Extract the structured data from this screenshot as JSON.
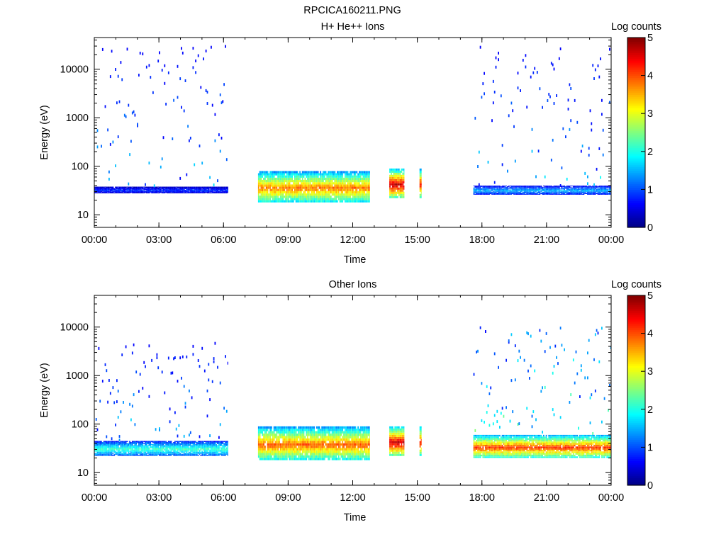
{
  "figure": {
    "title": "RPCICA160211.PNG"
  },
  "chart_data": [
    {
      "type": "heatmap",
      "title": "H+ He++ Ions",
      "xlabel": "Time",
      "ylabel": "Energy (eV)",
      "x_range_hours": [
        0,
        24
      ],
      "x_ticks": [
        "00:00",
        "03:00",
        "06:00",
        "09:00",
        "12:00",
        "15:00",
        "18:00",
        "21:00",
        "00:00"
      ],
      "y_scale": "log",
      "y_range_eV": [
        5.5,
        45000
      ],
      "y_ticks": [
        {
          "value": 10,
          "label": "10"
        },
        {
          "value": 100,
          "label": "100"
        },
        {
          "value": 1000,
          "label": "1000"
        },
        {
          "value": 10000,
          "label": "10000"
        }
      ],
      "colorbar": {
        "label": "Log counts",
        "range": [
          0,
          5
        ],
        "ticks": [
          "0",
          "1",
          "2",
          "3",
          "4",
          "5"
        ],
        "colormap": "jet"
      },
      "data_intervals_hours": [
        {
          "start": 0.0,
          "end": 6.2,
          "band_eV": [
            28,
            38
          ],
          "band_log_counts": 0.8,
          "sparse_up_to_eV": 30000
        },
        {
          "start": 7.6,
          "end": 12.8,
          "band_eV": [
            18,
            80
          ],
          "band_log_counts": 3.5,
          "sparse_up_to_eV": 0
        },
        {
          "start": 13.7,
          "end": 14.4,
          "band_eV": [
            22,
            90
          ],
          "band_log_counts": 4.3,
          "sparse_up_to_eV": 0
        },
        {
          "start": 15.1,
          "end": 15.2,
          "band_eV": [
            22,
            90
          ],
          "band_log_counts": 4.0,
          "sparse_up_to_eV": 0
        },
        {
          "start": 17.6,
          "end": 24.0,
          "band_eV": [
            26,
            40
          ],
          "band_log_counts": 1.4,
          "sparse_up_to_eV": 30000
        }
      ]
    },
    {
      "type": "heatmap",
      "title": "Other Ions",
      "xlabel": "Time",
      "ylabel": "Energy (eV)",
      "x_range_hours": [
        0,
        24
      ],
      "x_ticks": [
        "00:00",
        "03:00",
        "06:00",
        "09:00",
        "12:00",
        "15:00",
        "18:00",
        "21:00",
        "00:00"
      ],
      "y_scale": "log",
      "y_range_eV": [
        5.5,
        45000
      ],
      "y_ticks": [
        {
          "value": 10,
          "label": "10"
        },
        {
          "value": 100,
          "label": "100"
        },
        {
          "value": 1000,
          "label": "1000"
        },
        {
          "value": 10000,
          "label": "10000"
        }
      ],
      "colorbar": {
        "label": "Log counts",
        "range": [
          0,
          5
        ],
        "ticks": [
          "0",
          "1",
          "2",
          "3",
          "4",
          "5"
        ],
        "colormap": "jet"
      },
      "data_intervals_hours": [
        {
          "start": 0.0,
          "end": 6.2,
          "band_eV": [
            22,
            45
          ],
          "band_log_counts": 2.0,
          "sparse_up_to_eV": 5000
        },
        {
          "start": 7.6,
          "end": 12.8,
          "band_eV": [
            18,
            90
          ],
          "band_log_counts": 3.6,
          "sparse_up_to_eV": 0
        },
        {
          "start": 13.7,
          "end": 14.4,
          "band_eV": [
            22,
            90
          ],
          "band_log_counts": 4.3,
          "sparse_up_to_eV": 0
        },
        {
          "start": 15.1,
          "end": 15.2,
          "band_eV": [
            22,
            90
          ],
          "band_log_counts": 4.0,
          "sparse_up_to_eV": 0
        },
        {
          "start": 17.6,
          "end": 24.0,
          "band_eV": [
            20,
            60
          ],
          "band_log_counts": 3.8,
          "sparse_up_to_eV": 10000
        }
      ]
    }
  ]
}
